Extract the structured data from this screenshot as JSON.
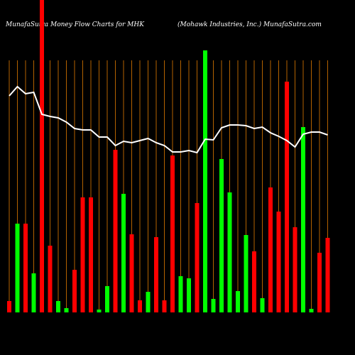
{
  "chart_data": {
    "type": "bar",
    "title": "MunafaSutra  Money Flow  Charts for MHK",
    "subtitle": "(Mohawk Industries, Inc.) MunafaSutra.com",
    "categories": [
      null,
      null,
      null,
      null,
      null,
      null,
      null,
      null,
      null,
      null,
      null,
      null,
      null,
      null,
      null,
      null,
      null,
      null,
      null,
      null,
      null,
      null,
      null,
      null,
      null,
      null,
      null,
      null,
      null,
      null,
      null,
      null,
      null,
      null,
      null,
      null,
      null,
      null,
      null,
      null
    ],
    "values": [
      16,
      125,
      125,
      55,
      440,
      94,
      16,
      6,
      60,
      162,
      162,
      4,
      37,
      229,
      167,
      110,
      17,
      29,
      106,
      17,
      221,
      51,
      48,
      154,
      369,
      19,
      216,
      169,
      30,
      109,
      86,
      20,
      176,
      142,
      325,
      120,
      261,
      5,
      84,
      105
    ],
    "colors": [
      "#ff0000",
      "#00ff00",
      "#ff0000",
      "#00ff00",
      "#ff0000",
      "#ff0000",
      "#00ff00",
      "#00ff00",
      "#ff0000",
      "#ff0000",
      "#ff0000",
      "#00ff00",
      "#00ff00",
      "#ff0000",
      "#00ff00",
      "#ff0000",
      "#ff0000",
      "#00ff00",
      "#ff0000",
      "#ff0000",
      "#ff0000",
      "#00ff00",
      "#00ff00",
      "#ff0000",
      "#00ff00",
      "#00ff00",
      "#00ff00",
      "#00ff00",
      "#00ff00",
      "#00ff00",
      "#ff0000",
      "#00ff00",
      "#ff0000",
      "#ff0000",
      "#ff0000",
      "#ff0000",
      "#00ff00",
      "#00ff00",
      "#ff0000",
      "#ff0000"
    ],
    "line_values": [
      305,
      318,
      308,
      310,
      279,
      276,
      274,
      268,
      259,
      257,
      257,
      247,
      247,
      235,
      241,
      239,
      242,
      245,
      239,
      235,
      226,
      226,
      228,
      225,
      244,
      243,
      260,
      264,
      264,
      263,
      259,
      261,
      253,
      248,
      242,
      233,
      251,
      254,
      254,
      250
    ],
    "line_color": "#ffffff",
    "ylim": [
      0,
      440
    ]
  }
}
